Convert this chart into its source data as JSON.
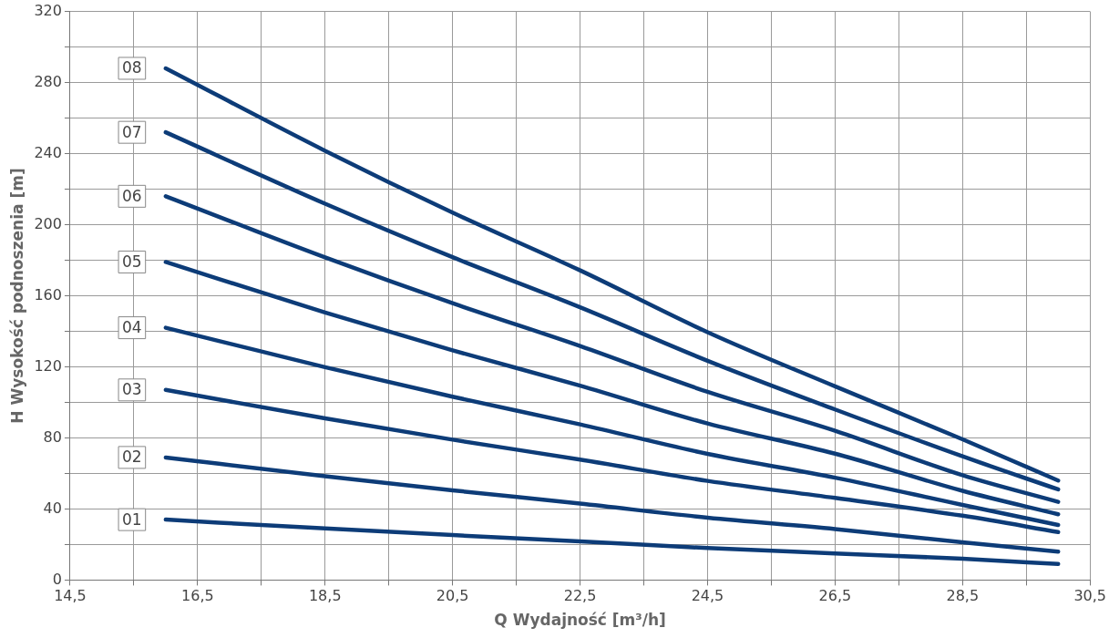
{
  "chart_data": {
    "type": "line",
    "xlabel": "Q Wydajność [m³/h]",
    "ylabel": "H Wysokość podnoszenia [m]",
    "x": [
      16,
      18.5,
      20.5,
      22.5,
      24.5,
      26.5,
      28.5,
      30
    ],
    "series": [
      {
        "name": "01",
        "color": "#0d3c78",
        "values": [
          34,
          29,
          25.3,
          21.8,
          18,
          15,
          12,
          9
        ]
      },
      {
        "name": "02",
        "color": "#0d3c78",
        "values": [
          69,
          58.4,
          50.5,
          43,
          35.1,
          28.7,
          21.2,
          16
        ]
      },
      {
        "name": "03",
        "color": "#0d3c78",
        "values": [
          107,
          91,
          79,
          67.8,
          55.8,
          46.2,
          36.2,
          27
        ]
      },
      {
        "name": "04",
        "color": "#0d3c78",
        "values": [
          142,
          119.8,
          103.2,
          87.6,
          71,
          57.6,
          42.3,
          31
        ]
      },
      {
        "name": "05",
        "color": "#0d3c78",
        "values": [
          179,
          150.6,
          129.3,
          109.4,
          88.1,
          71.1,
          50.2,
          37
        ]
      },
      {
        "name": "06",
        "color": "#0d3c78",
        "values": [
          216,
          181.6,
          155.8,
          131.7,
          105.9,
          84,
          59,
          44
        ]
      },
      {
        "name": "07",
        "color": "#0d3c78",
        "values": [
          252,
          211.8,
          181.7,
          153.5,
          123.4,
          96,
          69.6,
          51
        ]
      },
      {
        "name": "08",
        "color": "#0d3c78",
        "values": [
          288,
          241.6,
          206.8,
          174.3,
          139.5,
          109,
          79.2,
          56
        ]
      }
    ],
    "xlim": [
      14.5,
      30.5
    ],
    "xticks": [
      {
        "value": 14.5,
        "label": "14,5"
      },
      {
        "value": 15.5,
        "label": null
      },
      {
        "value": 16.5,
        "label": "16,5"
      },
      {
        "value": 17.5,
        "label": null
      },
      {
        "value": 18.5,
        "label": "18,5"
      },
      {
        "value": 19.5,
        "label": null
      },
      {
        "value": 20.5,
        "label": "20,5"
      },
      {
        "value": 21.5,
        "label": null
      },
      {
        "value": 22.5,
        "label": "22,5"
      },
      {
        "value": 23.5,
        "label": null
      },
      {
        "value": 24.5,
        "label": "24,5"
      },
      {
        "value": 25.5,
        "label": null
      },
      {
        "value": 26.5,
        "label": "26,5"
      },
      {
        "value": 27.5,
        "label": null
      },
      {
        "value": 28.5,
        "label": "28,5"
      },
      {
        "value": 29.5,
        "label": null
      },
      {
        "value": 30.5,
        "label": "30,5"
      }
    ],
    "ylim": [
      0,
      320
    ],
    "yticks": [
      0,
      {
        "value": 20,
        "label": null
      },
      40,
      {
        "value": 60,
        "label": null
      },
      80,
      {
        "value": 100,
        "label": null
      },
      120,
      {
        "value": 140,
        "label": null
      },
      160,
      {
        "value": 180,
        "label": null
      },
      200,
      {
        "value": 220,
        "label": null
      },
      240,
      {
        "value": 260,
        "label": null
      },
      280,
      {
        "value": 300,
        "label": null
      },
      320
    ],
    "grid": true,
    "legend": false,
    "marker": "none",
    "line_style": "solid"
  }
}
